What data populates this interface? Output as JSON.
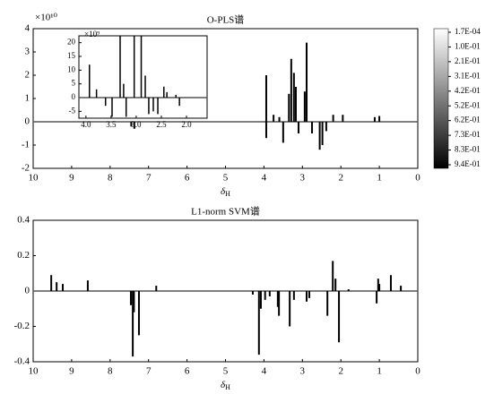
{
  "chart_data": [
    {
      "type": "stem",
      "title": "O-PLS谱",
      "y_multiplier": "×10¹⁰",
      "xlabel": {
        "symbol": "δ",
        "sub": "H"
      },
      "x": [
        7.45,
        7.37,
        3.94,
        3.94,
        3.75,
        3.6,
        3.5,
        3.35,
        3.29,
        3.22,
        3.17,
        3.1,
        2.94,
        2.89,
        2.75,
        2.55,
        2.48,
        2.38,
        2.2,
        1.95,
        1.12,
        1.0
      ],
      "values": [
        -0.2,
        -0.3,
        2.0,
        -0.7,
        0.3,
        0.2,
        -0.9,
        1.2,
        2.7,
        2.1,
        1.5,
        -0.5,
        1.3,
        3.4,
        -0.5,
        -1.2,
        -1.0,
        -0.4,
        0.3,
        0.3,
        0.2,
        0.25
      ],
      "color": "#000000",
      "xlim": [
        10,
        0
      ],
      "ylim": [
        -2,
        4
      ],
      "xticks": [
        10,
        9,
        8,
        7,
        6,
        5,
        4,
        3,
        2,
        1,
        0
      ],
      "yticks": [
        -2,
        -1,
        0,
        1,
        2,
        3,
        4
      ],
      "inset": {
        "y_multiplier": "×10⁹",
        "x": [
          3.93,
          3.79,
          3.61,
          3.48,
          3.32,
          3.25,
          3.2,
          3.04,
          2.9,
          2.82,
          2.75,
          2.66,
          2.57,
          2.45,
          2.39,
          2.21,
          2.14
        ],
        "values": [
          12,
          3,
          -3,
          -7,
          23,
          5,
          -7,
          23,
          23,
          8,
          -6,
          -5,
          -6,
          4,
          2,
          1,
          -3
        ],
        "xlim": [
          4.14,
          1.59
        ],
        "ylim": [
          -7.5,
          22.5
        ],
        "xticks": [
          {
            "value": 4,
            "label": "4.0"
          },
          3.5,
          {
            "value": 3,
            "label": "3.0"
          },
          2.5,
          {
            "value": 2,
            "label": "2.0"
          }
        ],
        "yticks": [
          -5,
          0,
          5,
          10,
          15,
          20
        ]
      },
      "colorbar": {
        "labels": [
          "1.7E-04",
          "1.0E-01",
          "2.1E-01",
          "3.1E-01",
          "4.2E-01",
          "5.2E-01",
          "6.2E-01",
          "7.3E-01",
          "8.3E-01",
          "9.4E-01"
        ],
        "colors": [
          "#ffffff",
          "#000000"
        ]
      }
    },
    {
      "type": "stem",
      "title": "L1-norm SVM谱",
      "xlabel": {
        "symbol": "δ",
        "sub": "H"
      },
      "x": [
        9.53,
        9.39,
        9.23,
        8.58,
        7.46,
        7.41,
        7.38,
        7.25,
        6.8,
        4.29,
        4.13,
        4.08,
        3.97,
        3.85,
        3.64,
        3.61,
        3.33,
        3.22,
        2.89,
        2.82,
        2.35,
        2.21,
        2.14,
        2.05,
        1.8,
        1.07,
        1.03,
        1.0,
        0.7,
        0.44
      ],
      "values": [
        0.09,
        0.05,
        0.04,
        0.06,
        -0.08,
        -0.37,
        -0.12,
        -0.25,
        0.03,
        -0.02,
        -0.36,
        -0.1,
        -0.05,
        -0.03,
        -0.09,
        -0.14,
        -0.2,
        -0.05,
        -0.06,
        -0.04,
        -0.14,
        0.17,
        0.07,
        -0.29,
        0.01,
        -0.07,
        0.07,
        0.04,
        0.09,
        0.03
      ],
      "color": "#000000",
      "xlim": [
        10,
        0
      ],
      "ylim": [
        -0.4,
        0.4
      ],
      "xticks": [
        10,
        9,
        8,
        7,
        6,
        5,
        4,
        3,
        2,
        1,
        0
      ],
      "yticks": [
        -0.4,
        -0.2,
        0,
        0.2,
        0.4
      ]
    }
  ]
}
